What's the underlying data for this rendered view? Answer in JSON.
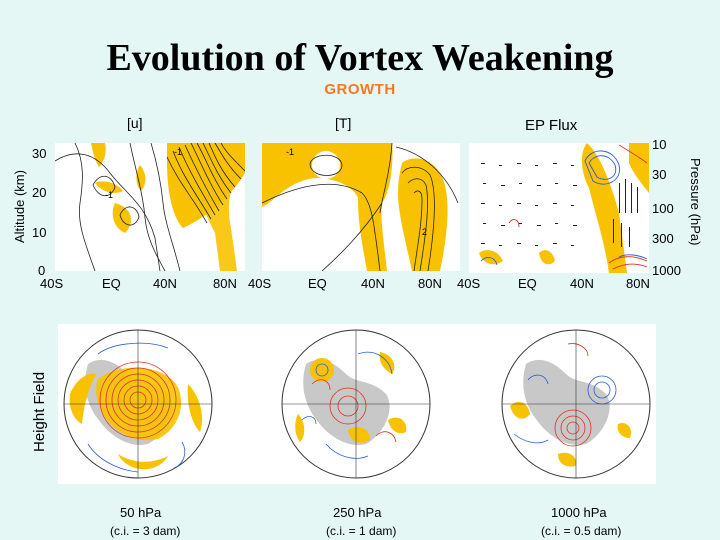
{
  "title": "Evolution of Vortex Weakening",
  "subtitle": "GROWTH",
  "top_panels": {
    "labels": [
      "[u]",
      "[T]",
      "EP Flux"
    ],
    "left_axis_label": "Altitude (km)",
    "left_ticks": [
      "30",
      "20",
      "10",
      "0"
    ],
    "right_axis_label": "Pressure (hPa)",
    "right_ticks": [
      "10",
      "30",
      "100",
      "300",
      "1000"
    ],
    "x_ticks": [
      "40S",
      "EQ",
      "40N",
      "80N",
      "40S",
      "EQ",
      "40N",
      "80N",
      "40S",
      "EQ",
      "40N",
      "80N"
    ],
    "contour_labels": [
      "-1",
      "-1",
      "-1",
      "-1",
      "2",
      "2"
    ]
  },
  "bottom_panels": {
    "side_label": "Height Field",
    "levels": [
      {
        "level": "50 hPa",
        "ci": "(c.i. = 3 dam)"
      },
      {
        "level": "250 hPa",
        "ci": "(c.i. = 1 dam)"
      },
      {
        "level": "1000 hPa",
        "ci": "(c.i. = 0.5 dam)"
      }
    ]
  },
  "colors": {
    "background": "#e4f7f4",
    "subtitle": "#f07a24",
    "positive_fill": "#f8c200",
    "land": "#c8c8c8",
    "contour_red": "#e03020",
    "contour_blue": "#2a5bd8"
  }
}
